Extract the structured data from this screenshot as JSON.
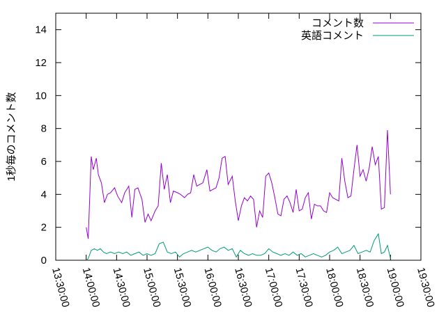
{
  "chart_data": {
    "type": "line",
    "title": "",
    "xlabel": "",
    "ylabel": "1秒毎のコメント数",
    "ylim": [
      0,
      15
    ],
    "yticks": [
      0,
      2,
      4,
      6,
      8,
      10,
      12,
      14
    ],
    "ytick_labels": [
      "0",
      "2",
      "4",
      "6",
      "8",
      "10",
      "12",
      "14"
    ],
    "xlim": [
      "13:30:00",
      "19:30:00"
    ],
    "xticks": [
      "13:30:00",
      "14:00:00",
      "14:30:00",
      "15:00:00",
      "15:30:00",
      "16:00:00",
      "16:30:00",
      "17:00:00",
      "17:30:00",
      "18:00:00",
      "18:30:00",
      "19:00:00",
      "19:30:00"
    ],
    "grid": false,
    "legend_position": "top-right",
    "series": [
      {
        "name": "コメント数",
        "color": "#9400d3",
        "x": [
          "14:00:00",
          "14:02:00",
          "14:05:00",
          "14:07:00",
          "14:10:00",
          "14:12:00",
          "14:15:00",
          "14:18:00",
          "14:21:00",
          "14:24:00",
          "14:28:00",
          "14:31:00",
          "14:35:00",
          "14:38:00",
          "14:42:00",
          "14:45:00",
          "14:48:00",
          "14:51:00",
          "14:55:00",
          "14:58:00",
          "15:01:00",
          "15:04:00",
          "15:08:00",
          "15:11:00",
          "15:14:00",
          "15:17:00",
          "15:20:00",
          "15:23:00",
          "15:26:00",
          "15:30:00",
          "15:33:00",
          "15:37:00",
          "15:40:00",
          "15:43:00",
          "15:46:00",
          "15:49:00",
          "15:52:00",
          "15:55:00",
          "15:59:00",
          "16:02:00",
          "16:05:00",
          "16:08:00",
          "16:11:00",
          "16:14:00",
          "16:17:00",
          "16:20:00",
          "16:24:00",
          "16:27:00",
          "16:30:00",
          "16:33:00",
          "16:36:00",
          "16:39:00",
          "16:42:00",
          "16:45:00",
          "16:48:00",
          "16:51:00",
          "16:54:00",
          "16:57:00",
          "17:00:00",
          "17:03:00",
          "17:06:00",
          "17:09:00",
          "17:12:00",
          "17:15:00",
          "17:18:00",
          "17:21:00",
          "17:24:00",
          "17:27:00",
          "17:30:00",
          "17:33:00",
          "17:36:00",
          "17:39:00",
          "17:42:00",
          "17:45:00",
          "17:48:00",
          "17:51:00",
          "17:54:00",
          "17:57:00",
          "18:00:00",
          "18:03:00",
          "18:06:00",
          "18:09:00",
          "18:12:00",
          "18:15:00",
          "18:18:00",
          "18:21:00",
          "18:24:00",
          "18:27:00",
          "18:30:00",
          "18:33:00",
          "18:36:00",
          "18:39:00",
          "18:42:00",
          "18:45:00",
          "18:48:00",
          "18:51:00",
          "18:54:00",
          "18:57:00",
          "19:00:00"
        ],
        "y": [
          2.0,
          1.3,
          6.3,
          5.5,
          6.2,
          5.2,
          4.7,
          3.5,
          4.0,
          4.1,
          4.4,
          3.9,
          3.5,
          4.1,
          4.5,
          2.6,
          4.3,
          4.4,
          3.7,
          2.3,
          2.8,
          2.4,
          3.0,
          3.3,
          5.9,
          4.3,
          5.2,
          3.5,
          4.2,
          4.1,
          4.0,
          3.8,
          4.0,
          4.1,
          5.2,
          4.5,
          4.6,
          4.7,
          5.5,
          4.2,
          4.3,
          4.4,
          5.0,
          6.2,
          6.3,
          4.6,
          5.1,
          3.6,
          2.4,
          3.3,
          3.8,
          3.6,
          3.9,
          3.7,
          2.0,
          3.0,
          2.6,
          5.1,
          5.3,
          4.7,
          3.8,
          2.8,
          2.7,
          3.7,
          3.9,
          3.5,
          2.9,
          4.3,
          3.0,
          3.1,
          3.8,
          4.1,
          2.5,
          3.4,
          3.3,
          3.3,
          3.0,
          2.9,
          4.1,
          3.8,
          3.7,
          3.6,
          6.2,
          4.8,
          3.8,
          3.9,
          5.5,
          7.0,
          5.1,
          5.5,
          4.8,
          5.6,
          6.9,
          5.8,
          6.3,
          3.1,
          3.2,
          7.9,
          4.0
        ]
      },
      {
        "name": "英語コメント",
        "color": "#009e73",
        "x": [
          "14:00:00",
          "14:02:00",
          "14:05:00",
          "14:08:00",
          "14:11:00",
          "14:14:00",
          "14:17:00",
          "14:20:00",
          "14:24:00",
          "14:28:00",
          "14:32:00",
          "14:36:00",
          "14:40:00",
          "14:44:00",
          "14:48:00",
          "14:52:00",
          "14:56:00",
          "15:00:00",
          "15:04:00",
          "15:08:00",
          "15:12:00",
          "15:16:00",
          "15:20:00",
          "15:24:00",
          "15:28:00",
          "15:32:00",
          "15:36:00",
          "15:40:00",
          "15:44:00",
          "15:48:00",
          "15:52:00",
          "15:56:00",
          "16:00:00",
          "16:04:00",
          "16:08:00",
          "16:12:00",
          "16:16:00",
          "16:20:00",
          "16:24:00",
          "16:28:00",
          "16:32:00",
          "16:36:00",
          "16:40:00",
          "16:44:00",
          "16:48:00",
          "16:52:00",
          "16:56:00",
          "17:00:00",
          "17:04:00",
          "17:08:00",
          "17:12:00",
          "17:16:00",
          "17:20:00",
          "17:24:00",
          "17:28:00",
          "17:32:00",
          "17:36:00",
          "17:40:00",
          "17:44:00",
          "17:48:00",
          "17:52:00",
          "17:56:00",
          "18:00:00",
          "18:04:00",
          "18:08:00",
          "18:12:00",
          "18:16:00",
          "18:20:00",
          "18:24:00",
          "18:28:00",
          "18:32:00",
          "18:36:00",
          "18:40:00",
          "18:44:00",
          "18:48:00",
          "18:51:00",
          "18:54:00",
          "18:57:00",
          "19:00:00"
        ],
        "y": [
          0.0,
          0.1,
          0.6,
          0.7,
          0.6,
          0.7,
          0.5,
          0.4,
          0.5,
          0.4,
          0.5,
          0.4,
          0.5,
          0.3,
          0.4,
          0.5,
          0.3,
          0.4,
          0.3,
          0.4,
          1.0,
          1.1,
          0.5,
          0.4,
          0.5,
          0.2,
          0.4,
          0.5,
          0.6,
          0.5,
          0.6,
          0.7,
          0.8,
          0.6,
          0.5,
          0.7,
          0.8,
          0.6,
          0.7,
          0.2,
          0.6,
          0.4,
          0.3,
          0.4,
          0.3,
          0.3,
          0.4,
          0.7,
          0.5,
          0.4,
          0.3,
          0.4,
          0.3,
          0.5,
          0.3,
          0.4,
          0.2,
          0.3,
          0.4,
          0.3,
          0.2,
          0.3,
          0.5,
          0.6,
          0.8,
          0.4,
          0.5,
          0.6,
          0.9,
          0.4,
          0.5,
          0.6,
          0.5,
          1.2,
          1.6,
          0.4,
          0.5,
          0.9,
          0.1
        ]
      }
    ]
  }
}
